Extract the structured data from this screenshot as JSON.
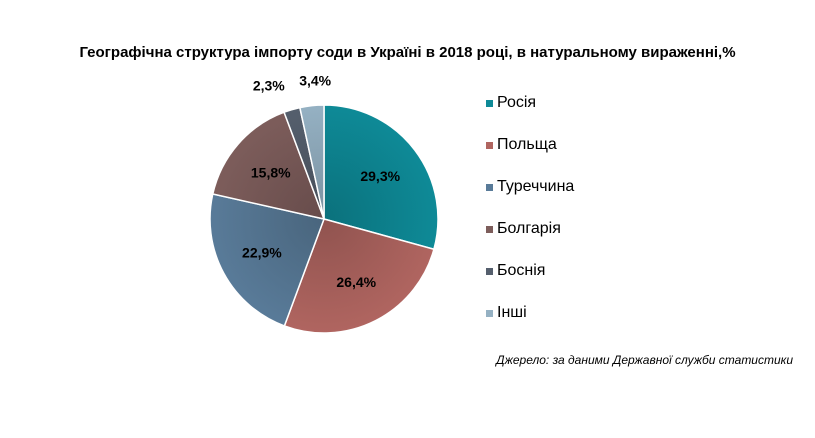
{
  "chart_data": {
    "type": "pie",
    "title": "Географічна структура імпорту соди в Україні в 2018 році, в натуральному вираженні,%",
    "categories": [
      "Росія",
      "Польща",
      "Туреччина",
      "Болгарія",
      "Боснія",
      "Інші"
    ],
    "values": [
      29.3,
      26.4,
      22.9,
      15.8,
      2.3,
      3.4
    ],
    "data_labels": [
      "29,3%",
      "26,4%",
      "22,9%",
      "15,8%",
      "2,3%",
      "3,4%"
    ],
    "colors": [
      "#0e8a97",
      "#b06560",
      "#597b99",
      "#7d5d5b",
      "#555f6d",
      "#95b1c3"
    ],
    "start_angle_deg": 0,
    "direction": "clockwise",
    "legend_position": "right"
  },
  "source": "Джерело: за даними Державної служби статистики"
}
